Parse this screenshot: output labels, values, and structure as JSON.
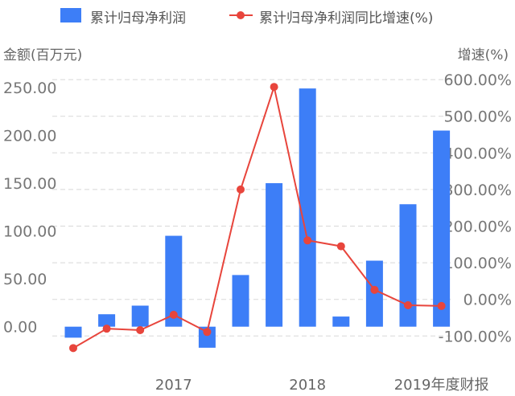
{
  "chart_data": {
    "type": "bar+line",
    "legend": [
      "累计归母净利润",
      "累计归母净利润同比增速(%)"
    ],
    "legend_position": "top",
    "y_left_label": "金额(百万元)",
    "y_right_label": "增速(%)",
    "y_left_ticks": [
      "0.00",
      "50.00",
      "100.00",
      "150.00",
      "200.00",
      "250.00"
    ],
    "y_right_ticks": [
      "-100.00%",
      "0.00%",
      "100.00%",
      "200.00%",
      "300.00%",
      "400.00%",
      "500.00%",
      "600.00%"
    ],
    "y_left_range": [
      0,
      250
    ],
    "y_right_range": [
      -100,
      600
    ],
    "x_labels": [
      {
        "index": 3,
        "text": "2017"
      },
      {
        "index": 7,
        "text": "2018"
      },
      {
        "index": 11,
        "text": "2019年度财报"
      }
    ],
    "series": [
      {
        "name": "累计归母净利润",
        "type": "bar",
        "color": "#3d7ef7",
        "values": [
          -11.5,
          13,
          22,
          95,
          -22,
          54,
          150,
          249,
          10.6,
          69,
          128,
          205
        ]
      },
      {
        "name": "累计归母净利润同比增速(%)",
        "type": "line",
        "color": "#e8453c",
        "values": [
          -133,
          -80,
          -84,
          -42,
          -89,
          300,
          580,
          161,
          145,
          26,
          -16,
          -18
        ]
      }
    ],
    "grid": true
  }
}
